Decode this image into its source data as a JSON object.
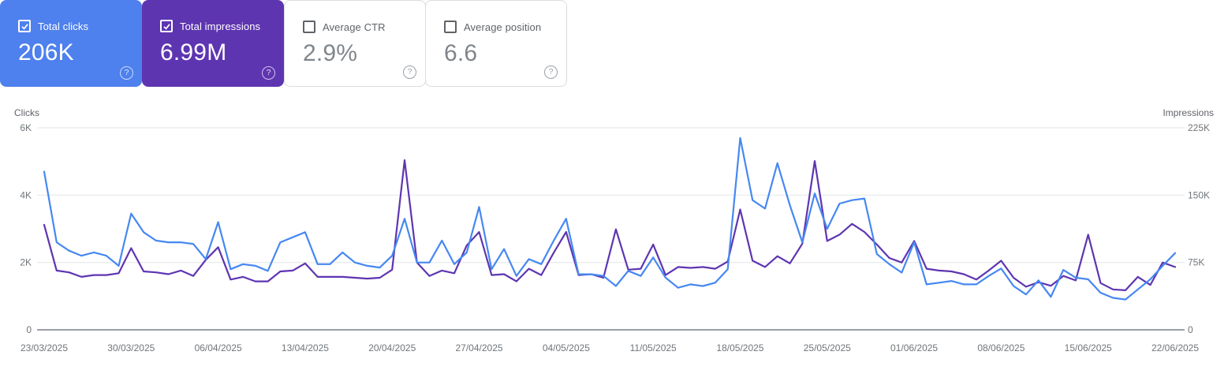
{
  "cards": [
    {
      "label": "Total clicks",
      "value": "206K",
      "checked": true,
      "bg": "#4e80ee"
    },
    {
      "label": "Total impressions",
      "value": "6.99M",
      "checked": true,
      "bg": "#5e35b1"
    },
    {
      "label": "Average CTR",
      "value": "2.9%",
      "checked": false
    },
    {
      "label": "Average position",
      "value": "6.6",
      "checked": false
    }
  ],
  "help_icon_glyph": "?",
  "colors": {
    "clicks_line": "#4688f1",
    "impressions_line": "#5e35b1",
    "clicks_card": "#4e80ee",
    "impressions_card": "#5e35b1"
  },
  "chart_data": {
    "type": "line",
    "x_tick_interval": 7,
    "left_axis": {
      "label": "Clicks",
      "max": 6000,
      "ticks": [
        "6K",
        "4K",
        "2K",
        "0"
      ]
    },
    "right_axis": {
      "label": "Impressions",
      "max": 225000,
      "ticks": [
        "225K",
        "150K",
        "75K",
        "0"
      ]
    },
    "grid": "horizontal",
    "legend": "none",
    "x": [
      "23/03/2025",
      "24/03/2025",
      "25/03/2025",
      "26/03/2025",
      "27/03/2025",
      "28/03/2025",
      "29/03/2025",
      "30/03/2025",
      "31/03/2025",
      "01/04/2025",
      "02/04/2025",
      "03/04/2025",
      "04/04/2025",
      "05/04/2025",
      "06/04/2025",
      "07/04/2025",
      "08/04/2025",
      "09/04/2025",
      "10/04/2025",
      "11/04/2025",
      "12/04/2025",
      "13/04/2025",
      "14/04/2025",
      "15/04/2025",
      "16/04/2025",
      "17/04/2025",
      "18/04/2025",
      "19/04/2025",
      "20/04/2025",
      "21/04/2025",
      "22/04/2025",
      "23/04/2025",
      "24/04/2025",
      "25/04/2025",
      "26/04/2025",
      "27/04/2025",
      "28/04/2025",
      "29/04/2025",
      "30/04/2025",
      "01/05/2025",
      "02/05/2025",
      "03/05/2025",
      "04/05/2025",
      "05/05/2025",
      "06/05/2025",
      "07/05/2025",
      "08/05/2025",
      "09/05/2025",
      "10/05/2025",
      "11/05/2025",
      "12/05/2025",
      "13/05/2025",
      "14/05/2025",
      "15/05/2025",
      "16/05/2025",
      "17/05/2025",
      "18/05/2025",
      "19/05/2025",
      "20/05/2025",
      "21/05/2025",
      "22/05/2025",
      "23/05/2025",
      "24/05/2025",
      "25/05/2025",
      "26/05/2025",
      "27/05/2025",
      "28/05/2025",
      "29/05/2025",
      "30/05/2025",
      "31/05/2025",
      "01/06/2025",
      "02/06/2025",
      "03/06/2025",
      "04/06/2025",
      "05/06/2025",
      "06/06/2025",
      "07/06/2025",
      "08/06/2025",
      "09/06/2025",
      "10/06/2025",
      "11/06/2025",
      "12/06/2025",
      "13/06/2025",
      "14/06/2025",
      "15/06/2025",
      "16/06/2025",
      "17/06/2025",
      "18/06/2025",
      "19/06/2025",
      "20/06/2025",
      "21/06/2025",
      "22/06/2025"
    ],
    "series": [
      {
        "name": "Total clicks",
        "axis": "left",
        "color": "#4688f1",
        "values": [
          4700,
          2600,
          2350,
          2200,
          2300,
          2200,
          1900,
          3450,
          2900,
          2650,
          2600,
          2600,
          2550,
          2100,
          3200,
          1800,
          1950,
          1900,
          1750,
          2600,
          2750,
          2900,
          1950,
          1950,
          2300,
          2000,
          1900,
          1850,
          2200,
          3300,
          2000,
          2000,
          2650,
          1950,
          2300,
          3650,
          1800,
          2400,
          1600,
          2100,
          1950,
          2650,
          3300,
          1650,
          1650,
          1600,
          1300,
          1750,
          1600,
          2150,
          1550,
          1250,
          1350,
          1300,
          1400,
          1800,
          5700,
          3850,
          3600,
          4950,
          3700,
          2600,
          4050,
          3000,
          3750,
          3850,
          3900,
          2250,
          1950,
          1700,
          2600,
          1350,
          1400,
          1450,
          1350,
          1350,
          1600,
          1820,
          1300,
          1050,
          1470,
          980,
          1780,
          1550,
          1500,
          1100,
          950,
          900,
          1200,
          1500,
          1900,
          2280
        ]
      },
      {
        "name": "Total impressions",
        "axis": "right",
        "color": "#5e35b1",
        "values": [
          117000,
          66000,
          64000,
          59000,
          61000,
          61000,
          63000,
          91000,
          65000,
          64000,
          62000,
          66000,
          60000,
          78000,
          92000,
          56000,
          59000,
          54000,
          54000,
          65000,
          66000,
          74000,
          59000,
          59000,
          59000,
          58000,
          57000,
          58000,
          67000,
          189000,
          75000,
          60000,
          66000,
          63000,
          94000,
          109000,
          61000,
          62000,
          54000,
          68000,
          61000,
          86000,
          109000,
          61000,
          62000,
          58000,
          112000,
          67000,
          68000,
          95000,
          61000,
          70000,
          69000,
          70000,
          68000,
          76000,
          134000,
          77000,
          70000,
          82000,
          74000,
          96000,
          188000,
          99000,
          106000,
          118000,
          109000,
          95000,
          80000,
          75000,
          99000,
          68000,
          66000,
          65000,
          62000,
          56000,
          66000,
          77000,
          58000,
          48000,
          53000,
          49000,
          60000,
          55000,
          106000,
          52000,
          45000,
          44000,
          59000,
          50000,
          75000,
          70000
        ]
      }
    ]
  }
}
